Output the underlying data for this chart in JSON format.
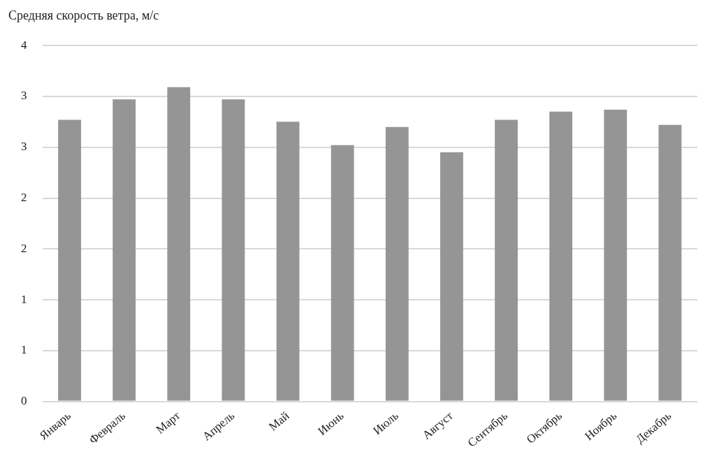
{
  "chart_data": {
    "type": "bar",
    "title": "Средняя скорость ветра, м/с",
    "categories": [
      "Январь",
      "Февраль",
      "Март",
      "Апрель",
      "Май",
      "Июнь",
      "Июль",
      "Август",
      "Сентябрь",
      "Октябрь",
      "Ноябрь",
      "Декабрь"
    ],
    "values": [
      2.77,
      2.97,
      3.09,
      2.97,
      2.75,
      2.52,
      2.7,
      2.45,
      2.77,
      2.85,
      2.87,
      2.72
    ],
    "color": "#959595",
    "ylim": [
      0,
      3.5
    ],
    "yticks": [
      0,
      {
        "value": 0.5,
        "label": "1"
      },
      1,
      {
        "value": 1.5,
        "label": "2"
      },
      2,
      {
        "value": 2.5,
        "label": "3"
      },
      3,
      {
        "value": 3.5,
        "label": "4"
      }
    ],
    "grid": "y",
    "legend": false
  }
}
